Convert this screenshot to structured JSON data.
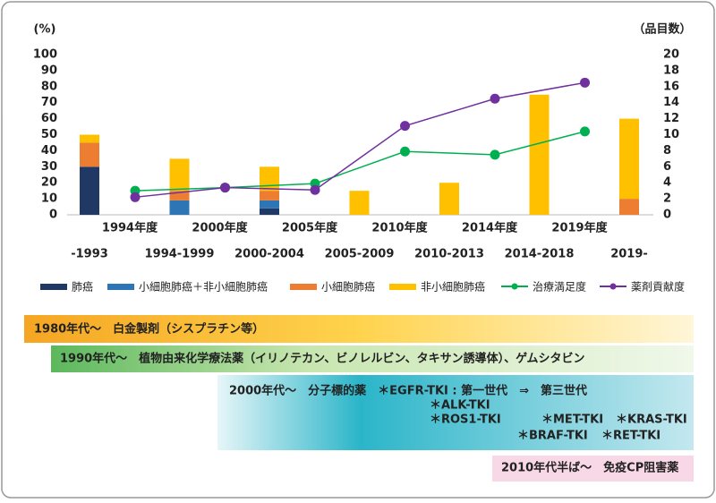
{
  "chart_data": {
    "type": "combo",
    "y_label": "(%)",
    "y2_label": "（品目数）",
    "ylim": [
      0,
      100
    ],
    "yticks": [
      0,
      10,
      20,
      30,
      40,
      50,
      60,
      70,
      80,
      90,
      100
    ],
    "y2lim": [
      0,
      20
    ],
    "y2ticks": [
      0,
      2,
      4,
      6,
      8,
      10,
      12,
      14,
      16,
      18,
      20
    ],
    "categories": [
      "-1993",
      "1994-1999",
      "2000-2004",
      "2005-2009",
      "2010-2013",
      "2014-2018",
      "2019-"
    ],
    "series": [
      {
        "name": "肺癌",
        "color": "#1f3864",
        "values": [
          30,
          0,
          4,
          0,
          0,
          0,
          0
        ]
      },
      {
        "name": "小細胞肺癌＋非小細胞肺癌",
        "color": "#2e75b6",
        "values": [
          0,
          9,
          5,
          0,
          0,
          0,
          0
        ]
      },
      {
        "name": "小細胞肺癌",
        "color": "#ed7d31",
        "values": [
          15,
          6,
          6,
          0,
          0,
          0,
          10
        ]
      },
      {
        "name": "非小細胞肺癌",
        "color": "#ffc000",
        "values": [
          5,
          20,
          15,
          15,
          20,
          75,
          50
        ]
      }
    ],
    "x": [
      "1994年度",
      "2000年度",
      "2005年度",
      "2010年度",
      "2014年度",
      "2019年度"
    ],
    "line_series": [
      {
        "name": "治療満足度",
        "color": "#00b050",
        "axis": "y2",
        "values": [
          3,
          3.4,
          3.9,
          7.9,
          7.5,
          10.4
        ]
      },
      {
        "name": "薬剤貢献度",
        "color": "#7030a0",
        "axis": "y2",
        "values": [
          2.2,
          3.4,
          3.1,
          11.1,
          14.5,
          16.5
        ]
      }
    ],
    "bands": [
      {
        "lines": [
          "1980年代～　白金製剤（シスプラチン等）"
        ]
      },
      {
        "lines": [
          "1990年代～　植物由来化学療法薬（イリノテカン、ビノレルビン、タキサン誘導体）、ゲムシタビン"
        ]
      },
      {
        "lines": [
          "2000年代～　分子標的薬　＊EGFR-TKI : 第一世代　⇒　第三世代",
          "＊ALK-TKI",
          "＊ROS1-TKI",
          "＊MET-TKI",
          "＊KRAS-TKI",
          "＊BRAF-TKI",
          "＊RET-TKI"
        ]
      },
      {
        "lines": [
          "2010年代半ば～　免疫CP阻害薬"
        ]
      }
    ]
  }
}
